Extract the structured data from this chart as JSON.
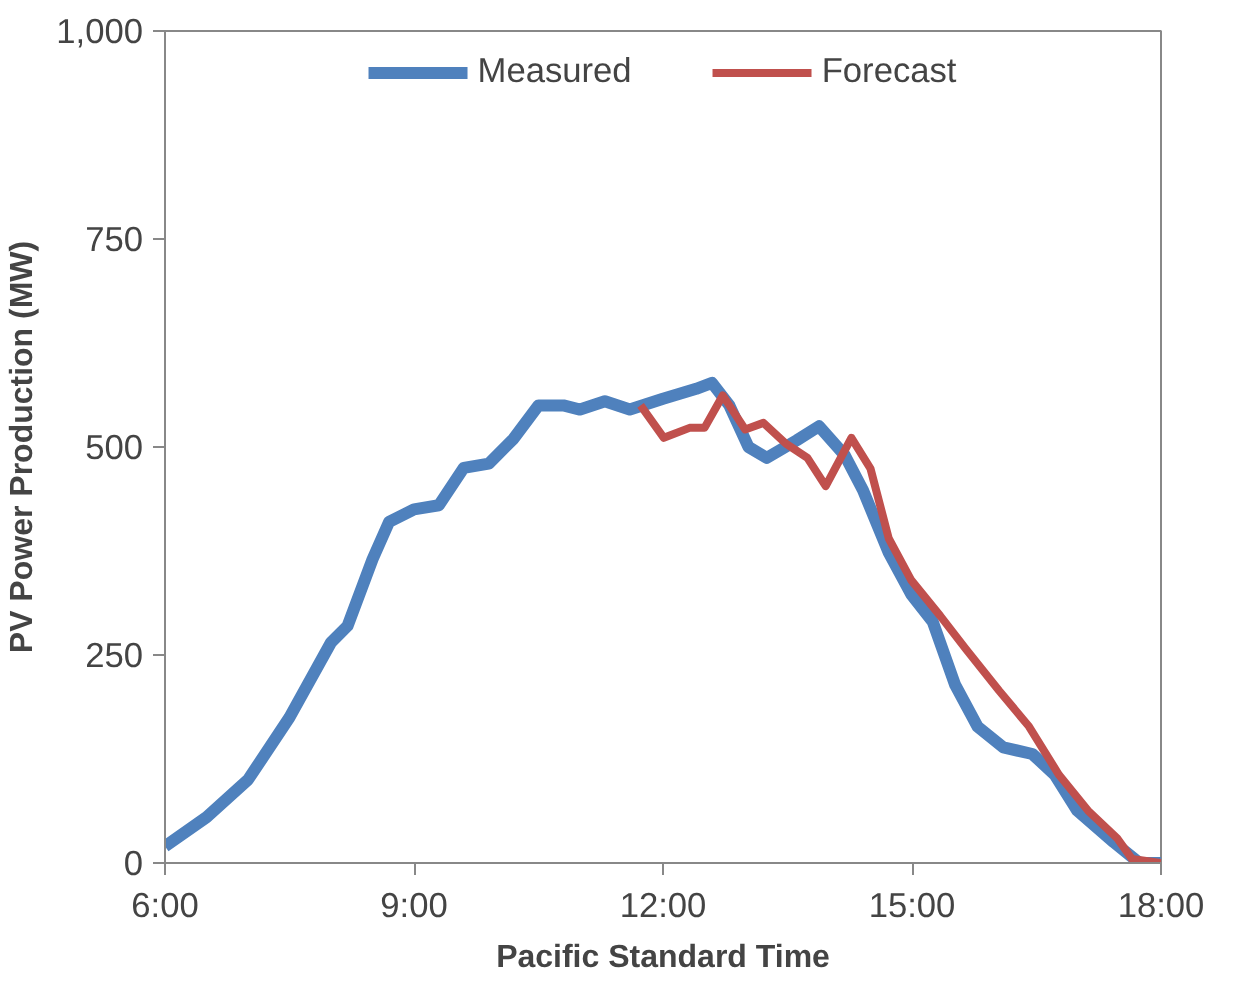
{
  "chart_data": {
    "type": "line",
    "xlabel": "Pacific Standard Time",
    "ylabel": "PV Power Production (MW)",
    "xlim": [
      6,
      18
    ],
    "xticks": [
      {
        "value": 6,
        "label": "6:00"
      },
      {
        "value": 9,
        "label": "9:00"
      },
      {
        "value": 12,
        "label": "12:00"
      },
      {
        "value": 15,
        "label": "15:00"
      },
      {
        "value": 18,
        "label": "18:00"
      }
    ],
    "ylim": [
      0,
      1000
    ],
    "yticks": [
      0,
      250,
      500,
      750,
      {
        "value": 1000,
        "label": "1,000"
      }
    ],
    "grid": false,
    "legend": "top",
    "line_style": "solid",
    "marker": "none",
    "series": [
      {
        "name": "Measured",
        "color": "#4f81bd",
        "x": [
          6.0,
          6.5,
          7.0,
          7.5,
          8.0,
          8.2,
          8.5,
          8.7,
          9.0,
          9.3,
          9.6,
          9.9,
          10.2,
          10.5,
          10.8,
          11.0,
          11.3,
          11.6,
          12.0,
          12.4,
          12.59,
          12.8,
          13.03,
          13.25,
          13.61,
          13.88,
          14.19,
          14.41,
          14.72,
          14.99,
          15.25,
          15.52,
          15.79,
          16.1,
          16.45,
          16.72,
          16.99,
          17.43,
          17.74,
          18.0
        ],
        "values": [
          20,
          55,
          100,
          175,
          265,
          285,
          365,
          410,
          425,
          430,
          475,
          480,
          510,
          550,
          550,
          545,
          555,
          545,
          558,
          570,
          577,
          550,
          500,
          487,
          508,
          525,
          490,
          448,
          373,
          323,
          290,
          214,
          164,
          139,
          131,
          106,
          63,
          25,
          0,
          0
        ]
      },
      {
        "name": "Forecast",
        "color": "#c0504d",
        "x": [
          11.73,
          12.01,
          12.32,
          12.5,
          12.72,
          12.99,
          13.21,
          13.48,
          13.74,
          13.96,
          14.27,
          14.5,
          14.72,
          14.99,
          15.34,
          15.65,
          16.05,
          16.41,
          16.77,
          17.12,
          17.47,
          17.65,
          18.0
        ],
        "values": [
          550,
          511,
          523,
          523,
          562,
          521,
          529,
          504,
          487,
          453,
          511,
          474,
          390,
          340,
          297,
          257,
          207,
          164,
          106,
          63,
          30,
          5,
          0
        ]
      }
    ]
  }
}
